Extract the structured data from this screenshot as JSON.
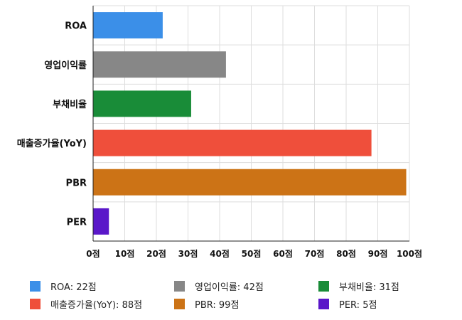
{
  "chart_data": {
    "type": "bar",
    "orientation": "horizontal",
    "categories": [
      "ROA",
      "영업이익률",
      "부채비율",
      "매출증가율(YoY)",
      "PBR",
      "PER"
    ],
    "values": [
      22,
      42,
      31,
      88,
      99,
      5
    ],
    "colors": [
      "#3b8fe8",
      "#878787",
      "#198c38",
      "#ef4f3b",
      "#cc7316",
      "#5a17c9"
    ],
    "xlim": [
      0,
      100
    ],
    "xticks": [
      0,
      10,
      20,
      30,
      40,
      50,
      60,
      70,
      80,
      90,
      100
    ],
    "tick_suffix": "점",
    "grid": true,
    "legend_position": "bottom",
    "legend": [
      {
        "label": "ROA: 22점",
        "color": "#3b8fe8"
      },
      {
        "label": "영업이익률: 42점",
        "color": "#878787"
      },
      {
        "label": "부채비율: 31점",
        "color": "#198c38"
      },
      {
        "label": "매출증가율(YoY): 88점",
        "color": "#ef4f3b"
      },
      {
        "label": "PBR: 99점",
        "color": "#cc7316"
      },
      {
        "label": "PER: 5점",
        "color": "#5a17c9"
      }
    ]
  }
}
